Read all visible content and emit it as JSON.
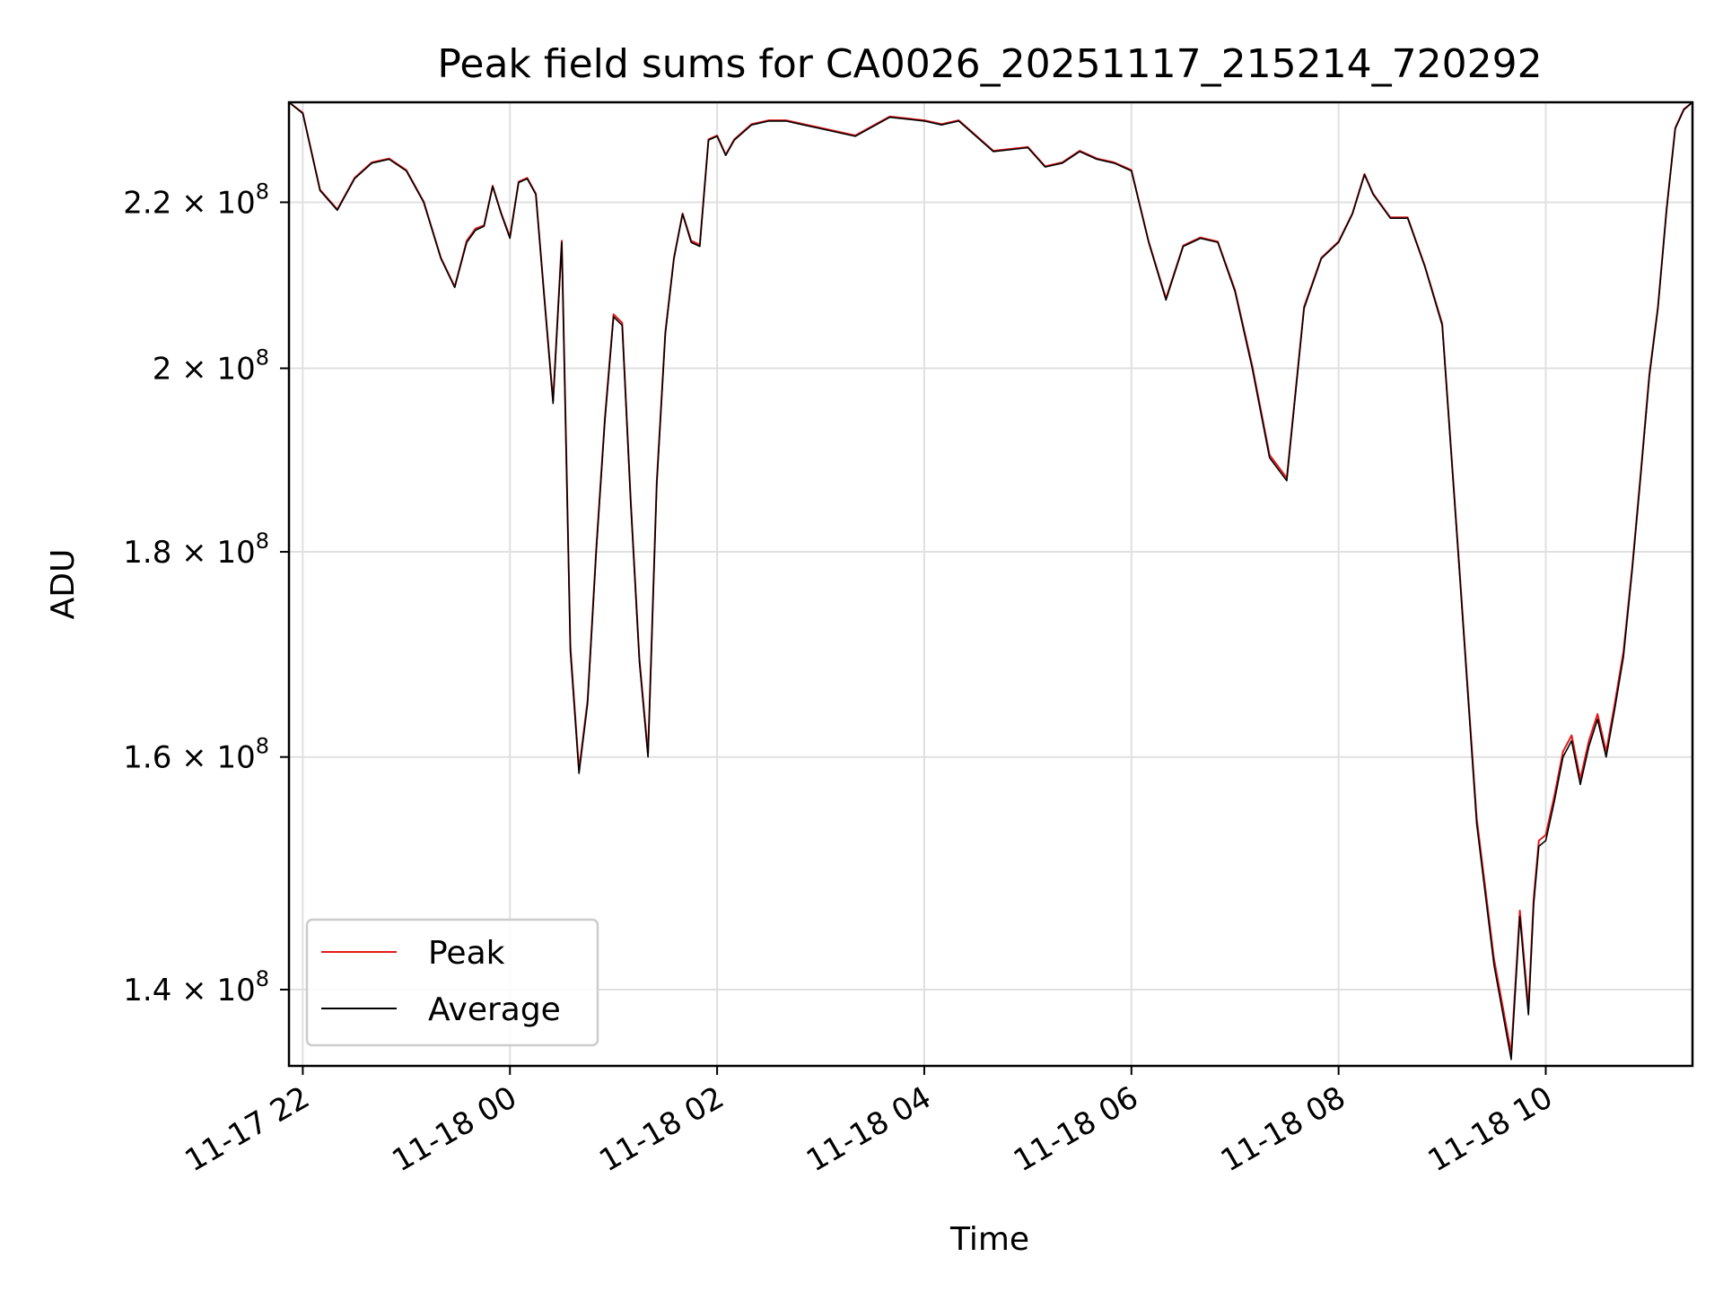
{
  "chart_data": {
    "type": "line",
    "title": "Peak field sums for CA0026_20251117_215214_720292",
    "xlabel": "Time",
    "ylabel": "ADU",
    "y_scale": "log",
    "xlim": [
      "2025-11-17 21:52",
      "2025-11-18 11:25"
    ],
    "ylim": [
      134000000,
      233000000
    ],
    "x_ticks": [
      "11-17 22",
      "11-18 00",
      "11-18 02",
      "11-18 04",
      "11-18 06",
      "11-18 08",
      "11-18 10"
    ],
    "x_tick_times": [
      "2025-11-17 22:00",
      "2025-11-18 00:00",
      "2025-11-18 02:00",
      "2025-11-18 04:00",
      "2025-11-18 06:00",
      "2025-11-18 08:00",
      "2025-11-18 10:00"
    ],
    "y_ticks": [
      {
        "value": 140000000,
        "mantissa": "1.4",
        "base": "10",
        "exp": "8"
      },
      {
        "value": 160000000,
        "mantissa": "1.6",
        "base": "10",
        "exp": "8"
      },
      {
        "value": 180000000,
        "mantissa": "1.8",
        "base": "10",
        "exp": "8"
      },
      {
        "value": 200000000,
        "mantissa": "2",
        "base": "10",
        "exp": "8"
      },
      {
        "value": 220000000,
        "mantissa": "2.2",
        "base": "10",
        "exp": "8"
      }
    ],
    "grid": true,
    "legend_position": "lower-left",
    "series": [
      {
        "name": "Peak",
        "color": "#e41a1c"
      },
      {
        "name": "Average",
        "color": "#000000"
      }
    ],
    "times": [
      "2025-11-17 21:52",
      "2025-11-17 22:00",
      "2025-11-17 22:10",
      "2025-11-17 22:20",
      "2025-11-17 22:30",
      "2025-11-17 22:40",
      "2025-11-17 22:50",
      "2025-11-17 23:00",
      "2025-11-17 23:10",
      "2025-11-17 23:20",
      "2025-11-17 23:28",
      "2025-11-17 23:35",
      "2025-11-17 23:40",
      "2025-11-17 23:45",
      "2025-11-17 23:50",
      "2025-11-17 23:55",
      "2025-11-18 00:00",
      "2025-11-18 00:05",
      "2025-11-18 00:10",
      "2025-11-18 00:15",
      "2025-11-18 00:20",
      "2025-11-18 00:25",
      "2025-11-18 00:30",
      "2025-11-18 00:35",
      "2025-11-18 00:40",
      "2025-11-18 00:45",
      "2025-11-18 00:50",
      "2025-11-18 00:55",
      "2025-11-18 01:00",
      "2025-11-18 01:05",
      "2025-11-18 01:10",
      "2025-11-18 01:15",
      "2025-11-18 01:20",
      "2025-11-18 01:25",
      "2025-11-18 01:30",
      "2025-11-18 01:35",
      "2025-11-18 01:40",
      "2025-11-18 01:45",
      "2025-11-18 01:50",
      "2025-11-18 01:55",
      "2025-11-18 02:00",
      "2025-11-18 02:05",
      "2025-11-18 02:10",
      "2025-11-18 02:20",
      "2025-11-18 02:30",
      "2025-11-18 02:40",
      "2025-11-18 02:50",
      "2025-11-18 03:00",
      "2025-11-18 03:20",
      "2025-11-18 03:40",
      "2025-11-18 04:00",
      "2025-11-18 04:10",
      "2025-11-18 04:20",
      "2025-11-18 04:40",
      "2025-11-18 05:00",
      "2025-11-18 05:10",
      "2025-11-18 05:20",
      "2025-11-18 05:30",
      "2025-11-18 05:40",
      "2025-11-18 05:50",
      "2025-11-18 06:00",
      "2025-11-18 06:10",
      "2025-11-18 06:20",
      "2025-11-18 06:30",
      "2025-11-18 06:40",
      "2025-11-18 06:50",
      "2025-11-18 07:00",
      "2025-11-18 07:10",
      "2025-11-18 07:20",
      "2025-11-18 07:30",
      "2025-11-18 07:40",
      "2025-11-18 07:50",
      "2025-11-18 08:00",
      "2025-11-18 08:08",
      "2025-11-18 08:15",
      "2025-11-18 08:20",
      "2025-11-18 08:30",
      "2025-11-18 08:40",
      "2025-11-18 08:50",
      "2025-11-18 09:00",
      "2025-11-18 09:10",
      "2025-11-18 09:20",
      "2025-11-18 09:30",
      "2025-11-18 09:40",
      "2025-11-18 09:45",
      "2025-11-18 09:50",
      "2025-11-18 09:53",
      "2025-11-18 09:56",
      "2025-11-18 10:00",
      "2025-11-18 10:05",
      "2025-11-18 10:10",
      "2025-11-18 10:15",
      "2025-11-18 10:20",
      "2025-11-18 10:25",
      "2025-11-18 10:30",
      "2025-11-18 10:35",
      "2025-11-18 10:40",
      "2025-11-18 10:45",
      "2025-11-18 10:50",
      "2025-11-18 10:55",
      "2025-11-18 11:00",
      "2025-11-18 11:05",
      "2025-11-18 11:10",
      "2025-11-18 11:15",
      "2025-11-18 11:20",
      "2025-11-18 11:25"
    ],
    "average": [
      233000000,
      231500000,
      221500000,
      219000000,
      223000000,
      225000000,
      225500000,
      224000000,
      220000000,
      213000000,
      209500000,
      215000000,
      216500000,
      217000000,
      222000000,
      218500000,
      215500000,
      222500000,
      223000000,
      221000000,
      208000000,
      196000000,
      215000000,
      170000000,
      158500000,
      165000000,
      180000000,
      194000000,
      206000000,
      205000000,
      185000000,
      169000000,
      160000000,
      187000000,
      204000000,
      213000000,
      218500000,
      215000000,
      214500000,
      228000000,
      228500000,
      226000000,
      228000000,
      230000000,
      230500000,
      230500000,
      230000000,
      229500000,
      228500000,
      231000000,
      230500000,
      230000000,
      230500000,
      226500000,
      227000000,
      224500000,
      225000000,
      226500000,
      225500000,
      225000000,
      224000000,
      215000000,
      208000000,
      214500000,
      215500000,
      215000000,
      209000000,
      200000000,
      190000000,
      187500000,
      207000000,
      213000000,
      215000000,
      218500000,
      223500000,
      221000000,
      218000000,
      218000000,
      212000000,
      205000000,
      178000000,
      154000000,
      142000000,
      134500000,
      146000000,
      138000000,
      147000000,
      152000000,
      152500000,
      156000000,
      160000000,
      161500000,
      157500000,
      161000000,
      163500000,
      160000000,
      164500000,
      169500000,
      178000000,
      188000000,
      199000000,
      207000000,
      219000000,
      229500000,
      232000000,
      233000000
    ],
    "peak": [
      233000000,
      231600000,
      221600000,
      219100000,
      223100000,
      225100000,
      225600000,
      224100000,
      220100000,
      213100000,
      209600000,
      215200000,
      216700000,
      217100000,
      222100000,
      218600000,
      215700000,
      222600000,
      223100000,
      221100000,
      208200000,
      196300000,
      215200000,
      170500000,
      158800000,
      165300000,
      180300000,
      194300000,
      206300000,
      205300000,
      185300000,
      169300000,
      160300000,
      187300000,
      204200000,
      213100000,
      218600000,
      215200000,
      214700000,
      228100000,
      228600000,
      226100000,
      228100000,
      230100000,
      230600000,
      230600000,
      230100000,
      229600000,
      228600000,
      231100000,
      230600000,
      230100000,
      230600000,
      226600000,
      227100000,
      224600000,
      225100000,
      226600000,
      225600000,
      225100000,
      224100000,
      215100000,
      208200000,
      214600000,
      215600000,
      215100000,
      209200000,
      200300000,
      190300000,
      187800000,
      207200000,
      213100000,
      215100000,
      218600000,
      223600000,
      221100000,
      218100000,
      218100000,
      212100000,
      205200000,
      178300000,
      154500000,
      142500000,
      135000000,
      146500000,
      138500000,
      147500000,
      152500000,
      153000000,
      156500000,
      160500000,
      162000000,
      158000000,
      161500000,
      164000000,
      160500000,
      165000000,
      170000000,
      178300000,
      188300000,
      199300000,
      207200000,
      219100000,
      229600000,
      232100000,
      233000000
    ]
  }
}
